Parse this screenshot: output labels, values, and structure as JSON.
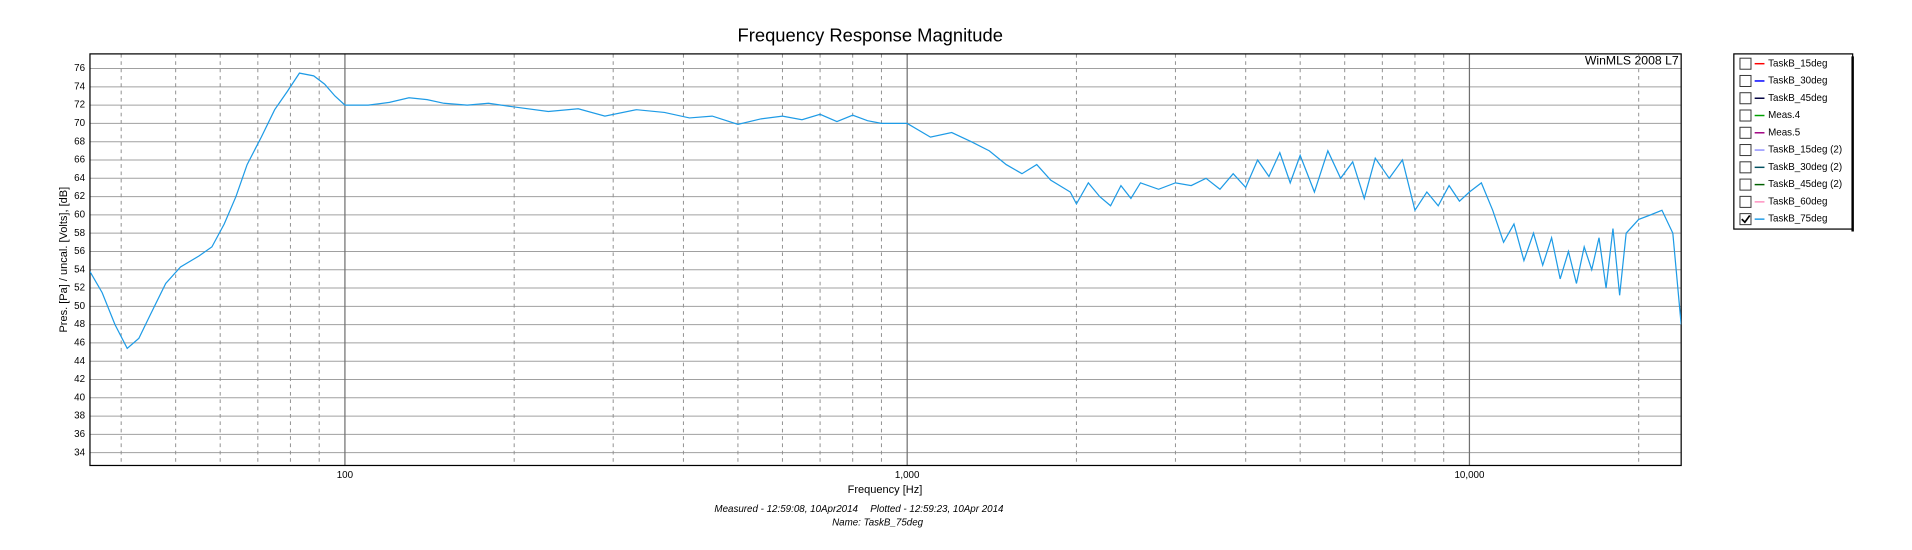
{
  "chart_data": {
    "type": "line",
    "title": "Frequency Response Magnitude",
    "watermark": "WinMLS 2008 L7",
    "xlabel": "Frequency [Hz]",
    "ylabel": "Pres. [Pa] / uncal. [Volts], [dB]",
    "footer": {
      "measured": "Measured - 12:59:08, 10Apr2014",
      "plotted": "Plotted - 12:59:23, 10Apr 2014",
      "name": "Name: TaskB_75deg"
    },
    "xscale": "log",
    "xlim": [
      35.2,
      23800
    ],
    "ylim": [
      32.6,
      77.6
    ],
    "xticks": [
      100,
      {
        "value": 1000,
        "label": "1,000"
      },
      {
        "value": 10000,
        "label": "10,000"
      }
    ],
    "xminor_ticks": [
      40,
      50,
      60,
      70,
      80,
      90,
      200,
      300,
      400,
      500,
      600,
      700,
      800,
      900,
      2000,
      3000,
      4000,
      5000,
      6000,
      7000,
      8000,
      9000,
      20000
    ],
    "yticks": [
      34,
      36,
      38,
      40,
      42,
      44,
      46,
      48,
      50,
      52,
      54,
      56,
      58,
      60,
      62,
      64,
      66,
      68,
      70,
      72,
      74,
      76
    ],
    "grid": true,
    "legend": "outside-right",
    "series": [
      {
        "name": "TaskB_15deg",
        "color": "#ff0000",
        "checked": false
      },
      {
        "name": "TaskB_30deg",
        "color": "#0000ff",
        "checked": false
      },
      {
        "name": "TaskB_45deg",
        "color": "#000040",
        "checked": false
      },
      {
        "name": "Meas.4",
        "color": "#00a000",
        "checked": false
      },
      {
        "name": "Meas.5",
        "color": "#a00080",
        "checked": false
      },
      {
        "name": "TaskB_15deg (2)",
        "color": "#9090ff",
        "checked": false
      },
      {
        "name": "TaskB_30deg (2)",
        "color": "#005060",
        "checked": false
      },
      {
        "name": "TaskB_45deg (2)",
        "color": "#006000",
        "checked": false
      },
      {
        "name": "TaskB_60deg",
        "color": "#ff90c0",
        "checked": false
      },
      {
        "name": "TaskB_75deg",
        "color": "#1e9be6",
        "checked": true,
        "x": [
          35.2,
          37,
          39,
          41,
          43,
          45,
          48,
          51,
          55,
          58,
          61,
          64,
          67,
          71,
          75,
          79,
          83,
          88,
          92,
          96,
          100,
          110,
          120,
          130,
          140,
          150,
          165,
          180,
          200,
          230,
          260,
          290,
          330,
          370,
          410,
          450,
          500,
          550,
          600,
          650,
          700,
          750,
          800,
          850,
          900,
          1000,
          1100,
          1200,
          1300,
          1400,
          1500,
          1600,
          1700,
          1800,
          1950,
          2000,
          2100,
          2200,
          2300,
          2400,
          2500,
          2600,
          2800,
          3000,
          3200,
          3400,
          3600,
          3800,
          4000,
          4200,
          4400,
          4600,
          4800,
          5000,
          5300,
          5600,
          5900,
          6200,
          6500,
          6800,
          7200,
          7600,
          8000,
          8400,
          8800,
          9200,
          9600,
          10000,
          10500,
          11000,
          11500,
          12000,
          12500,
          13000,
          13500,
          14000,
          14500,
          15000,
          15500,
          16000,
          16500,
          17000,
          17500,
          18000,
          18500,
          19000,
          20000,
          21000,
          22000,
          23000,
          23800
        ],
        "values": [
          53.8,
          51.5,
          48,
          45.4,
          46.5,
          49,
          52.5,
          54.3,
          55.5,
          56.5,
          59,
          62,
          65.5,
          68.5,
          71.5,
          73.5,
          75.5,
          75.2,
          74.3,
          73,
          72,
          72,
          72.3,
          72.8,
          72.6,
          72.2,
          72,
          72.2,
          71.8,
          71.3,
          71.6,
          70.8,
          71.5,
          71.2,
          70.6,
          70.8,
          69.9,
          70.5,
          70.8,
          70.4,
          71,
          70.2,
          70.9,
          70.3,
          70,
          70,
          68.5,
          69,
          68,
          67,
          65.5,
          64.5,
          65.5,
          63.8,
          62.5,
          61.2,
          63.5,
          62,
          61,
          63.2,
          61.8,
          63.5,
          62.8,
          63.5,
          63.2,
          64,
          62.8,
          64.5,
          63,
          66,
          64.2,
          66.8,
          63.5,
          66.5,
          62.5,
          67,
          64,
          65.8,
          61.8,
          66.2,
          64,
          66,
          60.5,
          62.5,
          61,
          63.2,
          61.5,
          62.5,
          63.5,
          60.5,
          57,
          59,
          55,
          58,
          54.5,
          57.5,
          53,
          56,
          52.5,
          56.5,
          54,
          57.5,
          52,
          58.5,
          51.2,
          58,
          59.5,
          60,
          60.5,
          58,
          48
        ]
      }
    ]
  }
}
